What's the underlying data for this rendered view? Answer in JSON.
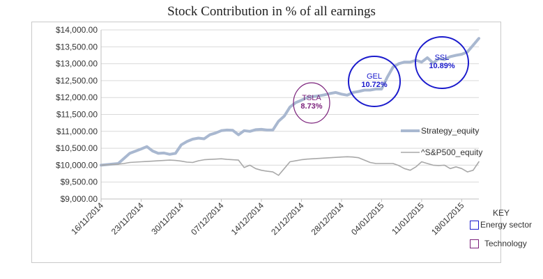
{
  "chart_data": {
    "type": "line",
    "title": "Stock Contribution in % of all earnings",
    "xlabel": "",
    "ylabel": "",
    "ylim": [
      9000,
      14000
    ],
    "yticks": [
      "$14,000.00",
      "$13,500.00",
      "$13,000.00",
      "$12,500.00",
      "$12,000.00",
      "$11,500.00",
      "$11,000.00",
      "$10,500.00",
      "$10,000.00",
      "$9,500.00",
      "$9,000.00"
    ],
    "ytick_values": [
      14000,
      13500,
      13000,
      12500,
      12000,
      11500,
      11000,
      10500,
      10000,
      9500,
      9000
    ],
    "xticks": [
      "16/11/2014",
      "23/11/2014",
      "30/11/2014",
      "07/12/2014",
      "14/12/2014",
      "21/12/2014",
      "28/12/2014",
      "04/01/2015",
      "11/01/2015",
      "18/01/2015"
    ],
    "x_range_days": [
      0,
      66
    ],
    "series": [
      {
        "name": "Strategy_equity",
        "color": "#a9b8d0",
        "x": [
          0,
          3,
          4,
          5,
          7,
          8,
          9,
          10,
          11,
          12,
          13,
          14,
          15,
          16,
          17,
          18,
          19,
          20,
          21,
          22,
          23,
          24,
          25,
          26,
          27,
          28,
          29,
          30,
          31,
          32,
          33,
          34,
          35,
          36,
          37,
          38,
          39,
          40,
          41,
          42,
          43,
          44,
          45,
          46,
          47,
          48,
          49,
          50,
          51,
          52,
          53,
          54,
          55,
          56,
          57,
          58,
          59,
          60,
          61,
          62,
          63,
          64,
          65,
          66
        ],
        "values": [
          10000,
          10050,
          10200,
          10350,
          10480,
          10550,
          10420,
          10350,
          10360,
          10320,
          10350,
          10600,
          10700,
          10770,
          10800,
          10780,
          10900,
          10950,
          11020,
          11040,
          11030,
          10900,
          11020,
          11000,
          11050,
          11060,
          11040,
          11040,
          11300,
          11450,
          11720,
          11850,
          11920,
          12000,
          12030,
          12050,
          12080,
          12120,
          12150,
          12100,
          12070,
          12150,
          12180,
          12220,
          12220,
          12250,
          12250,
          12600,
          12900,
          13000,
          13050,
          13050,
          13100,
          13050,
          13180,
          13020,
          13150,
          13120,
          13210,
          13250,
          13280,
          13350,
          13550,
          13750
        ]
      },
      {
        "name": "^S&P500_equity",
        "color": "#a8a8a8",
        "x": [
          0,
          3,
          4,
          5,
          7,
          8,
          9,
          10,
          11,
          12,
          13,
          14,
          15,
          16,
          17,
          18,
          19,
          20,
          21,
          22,
          23,
          24,
          25,
          26,
          27,
          28,
          29,
          30,
          31,
          32,
          33,
          34,
          35,
          36,
          37,
          38,
          39,
          40,
          41,
          42,
          43,
          44,
          45,
          46,
          47,
          48,
          49,
          50,
          51,
          52,
          53,
          54,
          55,
          56,
          57,
          58,
          59,
          60,
          61,
          62,
          63,
          64,
          65,
          66
        ],
        "values": [
          10000,
          10030,
          10050,
          10080,
          10100,
          10110,
          10120,
          10130,
          10140,
          10150,
          10140,
          10120,
          10090,
          10080,
          10130,
          10160,
          10170,
          10180,
          10190,
          10170,
          10160,
          10150,
          9930,
          10000,
          9900,
          9850,
          9820,
          9800,
          9700,
          9900,
          10100,
          10130,
          10160,
          10180,
          10190,
          10200,
          10210,
          10220,
          10230,
          10240,
          10250,
          10240,
          10220,
          10150,
          10080,
          10050,
          10050,
          10050,
          10050,
          9990,
          9900,
          9850,
          9950,
          10100,
          10050,
          10000,
          9990,
          10000,
          9900,
          9950,
          9900,
          9800,
          9850,
          10100
        ]
      }
    ],
    "legend": [
      "Strategy_equity",
      "^S&P500_equity"
    ],
    "legend_position": "right",
    "annotations": [
      {
        "name": "TSLA",
        "value": "8.73%",
        "color": "#7a1f7a"
      },
      {
        "name": "GEL",
        "value": "10.72%",
        "color": "#1a1acc"
      },
      {
        "name": "SSL",
        "value": "10.89%",
        "color": "#1a1acc"
      }
    ]
  },
  "key": {
    "title": "KEY",
    "items": [
      {
        "label": "Energy sector",
        "color": "#1a1acc"
      },
      {
        "label": "Technology",
        "color": "#7a1f7a"
      }
    ]
  }
}
